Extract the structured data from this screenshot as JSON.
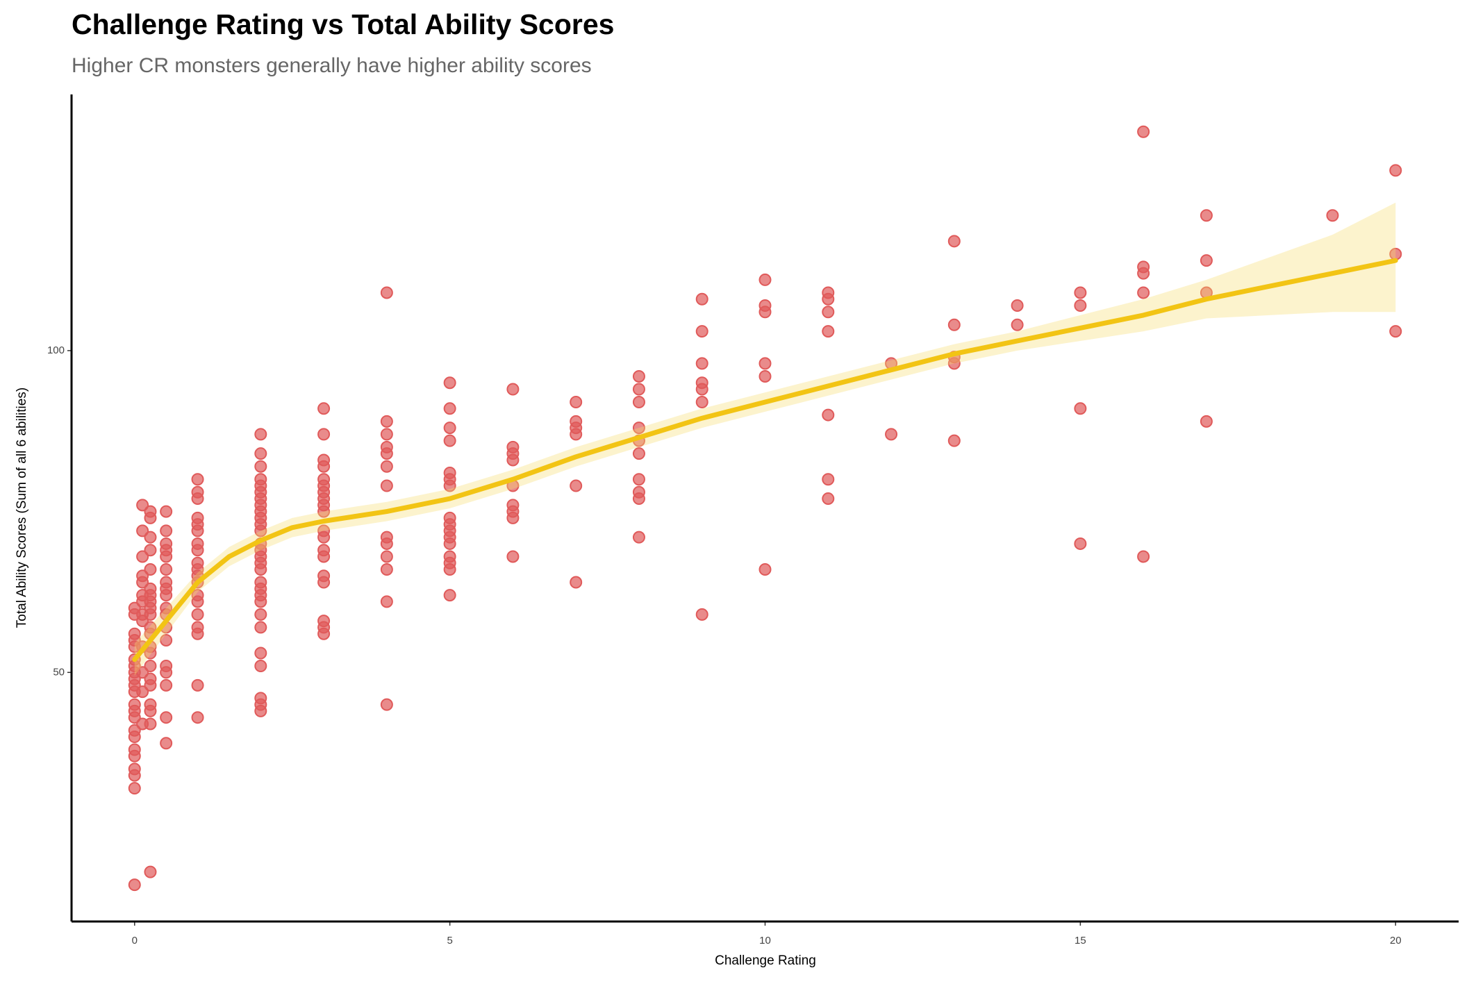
{
  "chart_data": {
    "type": "scatter",
    "title": "Challenge Rating vs Total Ability Scores",
    "subtitle": "Higher CR monsters generally have higher ability scores",
    "x_label": "Challenge Rating",
    "y_label": "Total Ability Scores (Sum of all 6 abilities)",
    "xlim": [
      -1,
      21
    ],
    "ylim": [
      11.3,
      139.8
    ],
    "xticks": [
      0,
      5,
      10,
      15,
      20
    ],
    "yticks": [
      50,
      100
    ],
    "point_color": "#e05a5a",
    "groups": [
      {
        "x": 0,
        "y": [
          60,
          59,
          56,
          55,
          54,
          52,
          51,
          50,
          49,
          48,
          47,
          45,
          44,
          43,
          41,
          40,
          38,
          37,
          35,
          34,
          32,
          17
        ]
      },
      {
        "x": 0.125,
        "y": [
          76,
          72,
          68,
          65,
          64,
          62,
          61,
          59,
          58,
          54,
          50,
          47,
          42
        ]
      },
      {
        "x": 0.25,
        "y": [
          75,
          74,
          71,
          69,
          66,
          63,
          62,
          61,
          60,
          59,
          57,
          56,
          54,
          53,
          51,
          49,
          48,
          45,
          44,
          42,
          19
        ]
      },
      {
        "x": 0.5,
        "y": [
          75,
          72,
          70,
          69,
          68,
          66,
          64,
          63,
          62,
          60,
          59,
          57,
          55,
          51,
          50,
          48,
          43,
          39
        ]
      },
      {
        "x": 1,
        "y": [
          80,
          78,
          77,
          74,
          73,
          72,
          70,
          69,
          67,
          66,
          65,
          64,
          62,
          61,
          59,
          57,
          56,
          48,
          43
        ]
      },
      {
        "x": 2,
        "y": [
          87,
          84,
          82,
          80,
          79,
          78,
          77,
          76,
          75,
          74,
          73,
          72,
          70,
          69,
          68,
          67,
          66,
          64,
          63,
          62,
          61,
          59,
          57,
          53,
          51,
          46,
          45,
          44
        ]
      },
      {
        "x": 3,
        "y": [
          91,
          87,
          83,
          82,
          80,
          79,
          78,
          77,
          76,
          75,
          72,
          71,
          69,
          68,
          65,
          64,
          58,
          57,
          56
        ]
      },
      {
        "x": 4,
        "y": [
          109,
          89,
          87,
          85,
          84,
          82,
          79,
          71,
          70,
          68,
          66,
          61,
          45
        ]
      },
      {
        "x": 5,
        "y": [
          95,
          91,
          88,
          86,
          81,
          80,
          79,
          74,
          73,
          72,
          71,
          70,
          68,
          67,
          66,
          62
        ]
      },
      {
        "x": 6,
        "y": [
          94,
          85,
          84,
          83,
          79,
          76,
          75,
          74,
          68
        ]
      },
      {
        "x": 7,
        "y": [
          92,
          89,
          88,
          87,
          79,
          64
        ]
      },
      {
        "x": 8,
        "y": [
          96,
          94,
          92,
          88,
          86,
          84,
          80,
          78,
          77,
          71
        ]
      },
      {
        "x": 9,
        "y": [
          108,
          103,
          98,
          95,
          94,
          92,
          59
        ]
      },
      {
        "x": 10,
        "y": [
          111,
          107,
          106,
          98,
          96,
          66
        ]
      },
      {
        "x": 11,
        "y": [
          109,
          108,
          106,
          103,
          90,
          80,
          77
        ]
      },
      {
        "x": 12,
        "y": [
          98,
          87
        ]
      },
      {
        "x": 13,
        "y": [
          117,
          104,
          99,
          98,
          86
        ]
      },
      {
        "x": 14,
        "y": [
          107,
          104
        ]
      },
      {
        "x": 15,
        "y": [
          109,
          107,
          91,
          70
        ]
      },
      {
        "x": 16,
        "y": [
          134,
          113,
          112,
          109,
          68
        ]
      },
      {
        "x": 17,
        "y": [
          121,
          114,
          109,
          89
        ]
      },
      {
        "x": 19,
        "y": [
          121
        ]
      },
      {
        "x": 20,
        "y": [
          128,
          115,
          103
        ]
      }
    ],
    "smooth": {
      "color": "#f2c414",
      "band_color": "#f7dc6f",
      "x": [
        0,
        0.5,
        1,
        1.5,
        2,
        2.5,
        3,
        4,
        5,
        6,
        7,
        8,
        9,
        10,
        11,
        12,
        13,
        14,
        15,
        16,
        17,
        18,
        19,
        20
      ],
      "y": [
        52,
        58,
        64,
        68,
        70.5,
        72.5,
        73.5,
        75,
        77,
        80,
        83.5,
        86.5,
        89.5,
        92,
        94.5,
        97,
        99.5,
        101.5,
        103.5,
        105.5,
        108,
        110,
        112,
        114
      ],
      "upper": [
        54.5,
        60,
        65.5,
        69.5,
        72,
        74,
        75,
        76.5,
        78.5,
        81.5,
        85,
        88,
        91,
        93.5,
        96,
        98.5,
        101,
        103,
        105.5,
        108,
        111,
        114.5,
        118,
        123
      ],
      "lower": [
        49.5,
        56,
        62.5,
        66.5,
        69,
        71,
        72,
        73.5,
        75.5,
        78.5,
        82,
        85,
        88,
        90.5,
        93,
        95.5,
        98,
        100,
        101.5,
        103,
        105,
        105.5,
        106,
        106
      ]
    }
  }
}
